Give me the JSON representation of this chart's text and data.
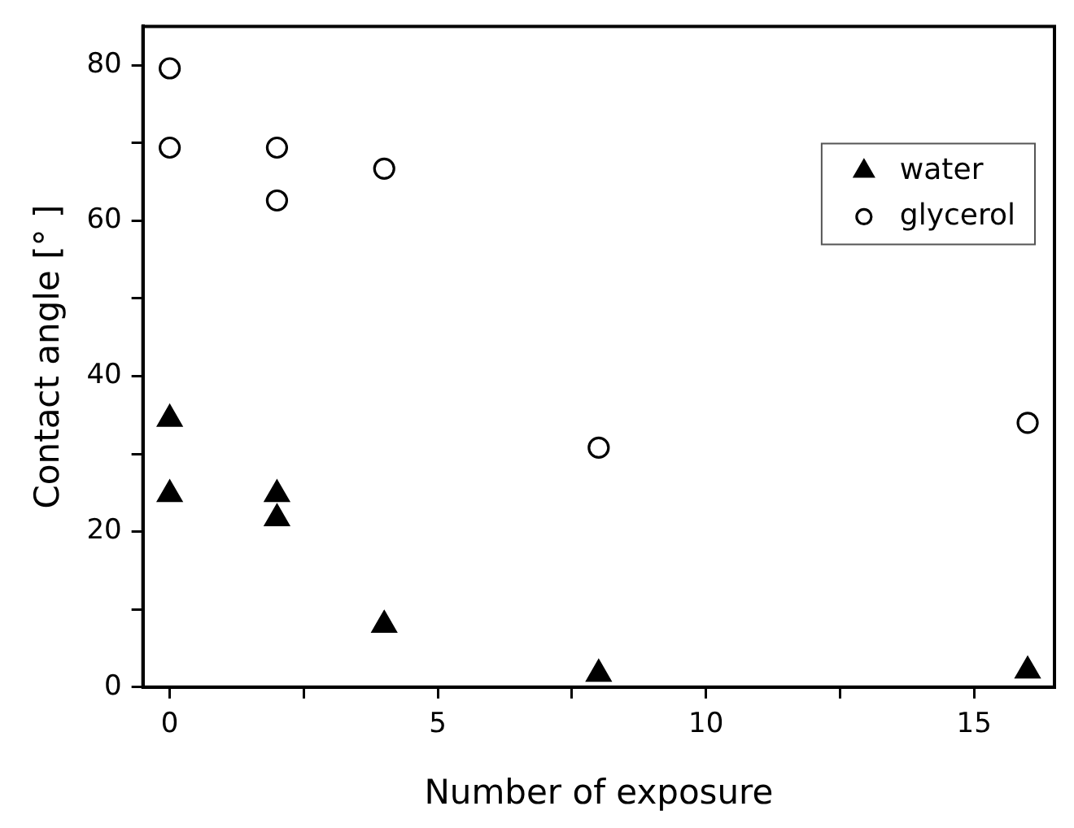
{
  "chart_data": {
    "type": "scatter",
    "xlabel": "Number of exposure",
    "ylabel": "Contact angle [° ]",
    "xlim": [
      -0.5,
      16.5
    ],
    "ylim": [
      0,
      85
    ],
    "xticks": [
      0,
      {
        "value": 2.5,
        "label": null
      },
      5,
      {
        "value": 7.5,
        "label": null
      },
      10,
      {
        "value": 12.5,
        "label": null
      },
      15
    ],
    "yticks": [
      0,
      {
        "value": 10,
        "label": null
      },
      20,
      {
        "value": 30,
        "label": null
      },
      40,
      {
        "value": 50,
        "label": null
      },
      60,
      {
        "value": 70,
        "label": null
      },
      80
    ],
    "grid": false,
    "legend": "top right",
    "series": [
      {
        "name": "water",
        "color": "#000000",
        "marker": "triangle",
        "x": [
          0,
          0,
          2,
          2,
          4,
          8,
          16
        ],
        "values": [
          34.5,
          24.8,
          24.8,
          21.7,
          8.0,
          1.7,
          2.1
        ]
      },
      {
        "name": "glycerol",
        "color": "#000000",
        "marker": "circle",
        "x": [
          0,
          0,
          2,
          2,
          4,
          8,
          16
        ],
        "values": [
          79.6,
          69.4,
          69.4,
          62.6,
          66.7,
          30.8,
          34.0
        ]
      }
    ]
  }
}
